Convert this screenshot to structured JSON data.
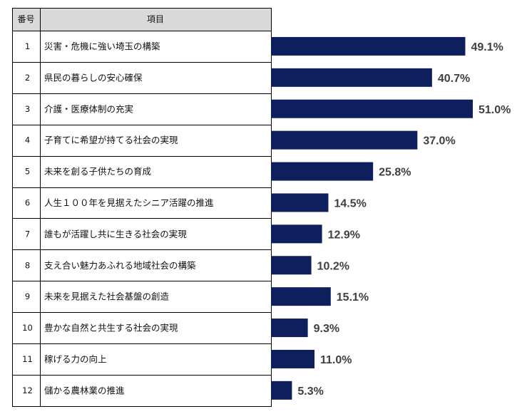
{
  "table": {
    "header_number": "番号",
    "header_item": "項目"
  },
  "colors": {
    "bar": "#0d1f5c",
    "header_bg": "#d9d9d9",
    "grid": "#000000",
    "value_text": "#404040"
  },
  "chart_data": {
    "type": "bar",
    "orientation": "horizontal",
    "unit": "%",
    "xlim": [
      0,
      55
    ],
    "categories": [
      {
        "number": "1",
        "label": "災害・危機に強い埼玉の構築"
      },
      {
        "number": "2",
        "label": "県民の暮らしの安心確保"
      },
      {
        "number": "3",
        "label": "介護・医療体制の充実"
      },
      {
        "number": "4",
        "label": "子育てに希望が持てる社会の実現"
      },
      {
        "number": "5",
        "label": "未来を創る子供たちの育成"
      },
      {
        "number": "6",
        "label": "人生１００年を見据えたシニア活躍の推進"
      },
      {
        "number": "7",
        "label": "誰もが活躍し共に生きる社会の実現"
      },
      {
        "number": "8",
        "label": "支え合い魅力あふれる地域社会の構築"
      },
      {
        "number": "9",
        "label": "未来を見据えた社会基盤の創造"
      },
      {
        "number": "10",
        "label": "豊かな自然と共生する社会の実現"
      },
      {
        "number": "11",
        "label": "稼げる力の向上"
      },
      {
        "number": "12",
        "label": "儲かる農林業の推進"
      }
    ],
    "values": [
      49.1,
      40.7,
      51.0,
      37.0,
      25.8,
      14.5,
      12.9,
      10.2,
      15.1,
      9.3,
      11.0,
      5.3
    ],
    "value_labels": [
      "49.1%",
      "40.7%",
      "51.0%",
      "37.0%",
      "25.8%",
      "14.5%",
      "12.9%",
      "10.2%",
      "15.1%",
      "9.3%",
      "11.0%",
      "5.3%"
    ]
  }
}
